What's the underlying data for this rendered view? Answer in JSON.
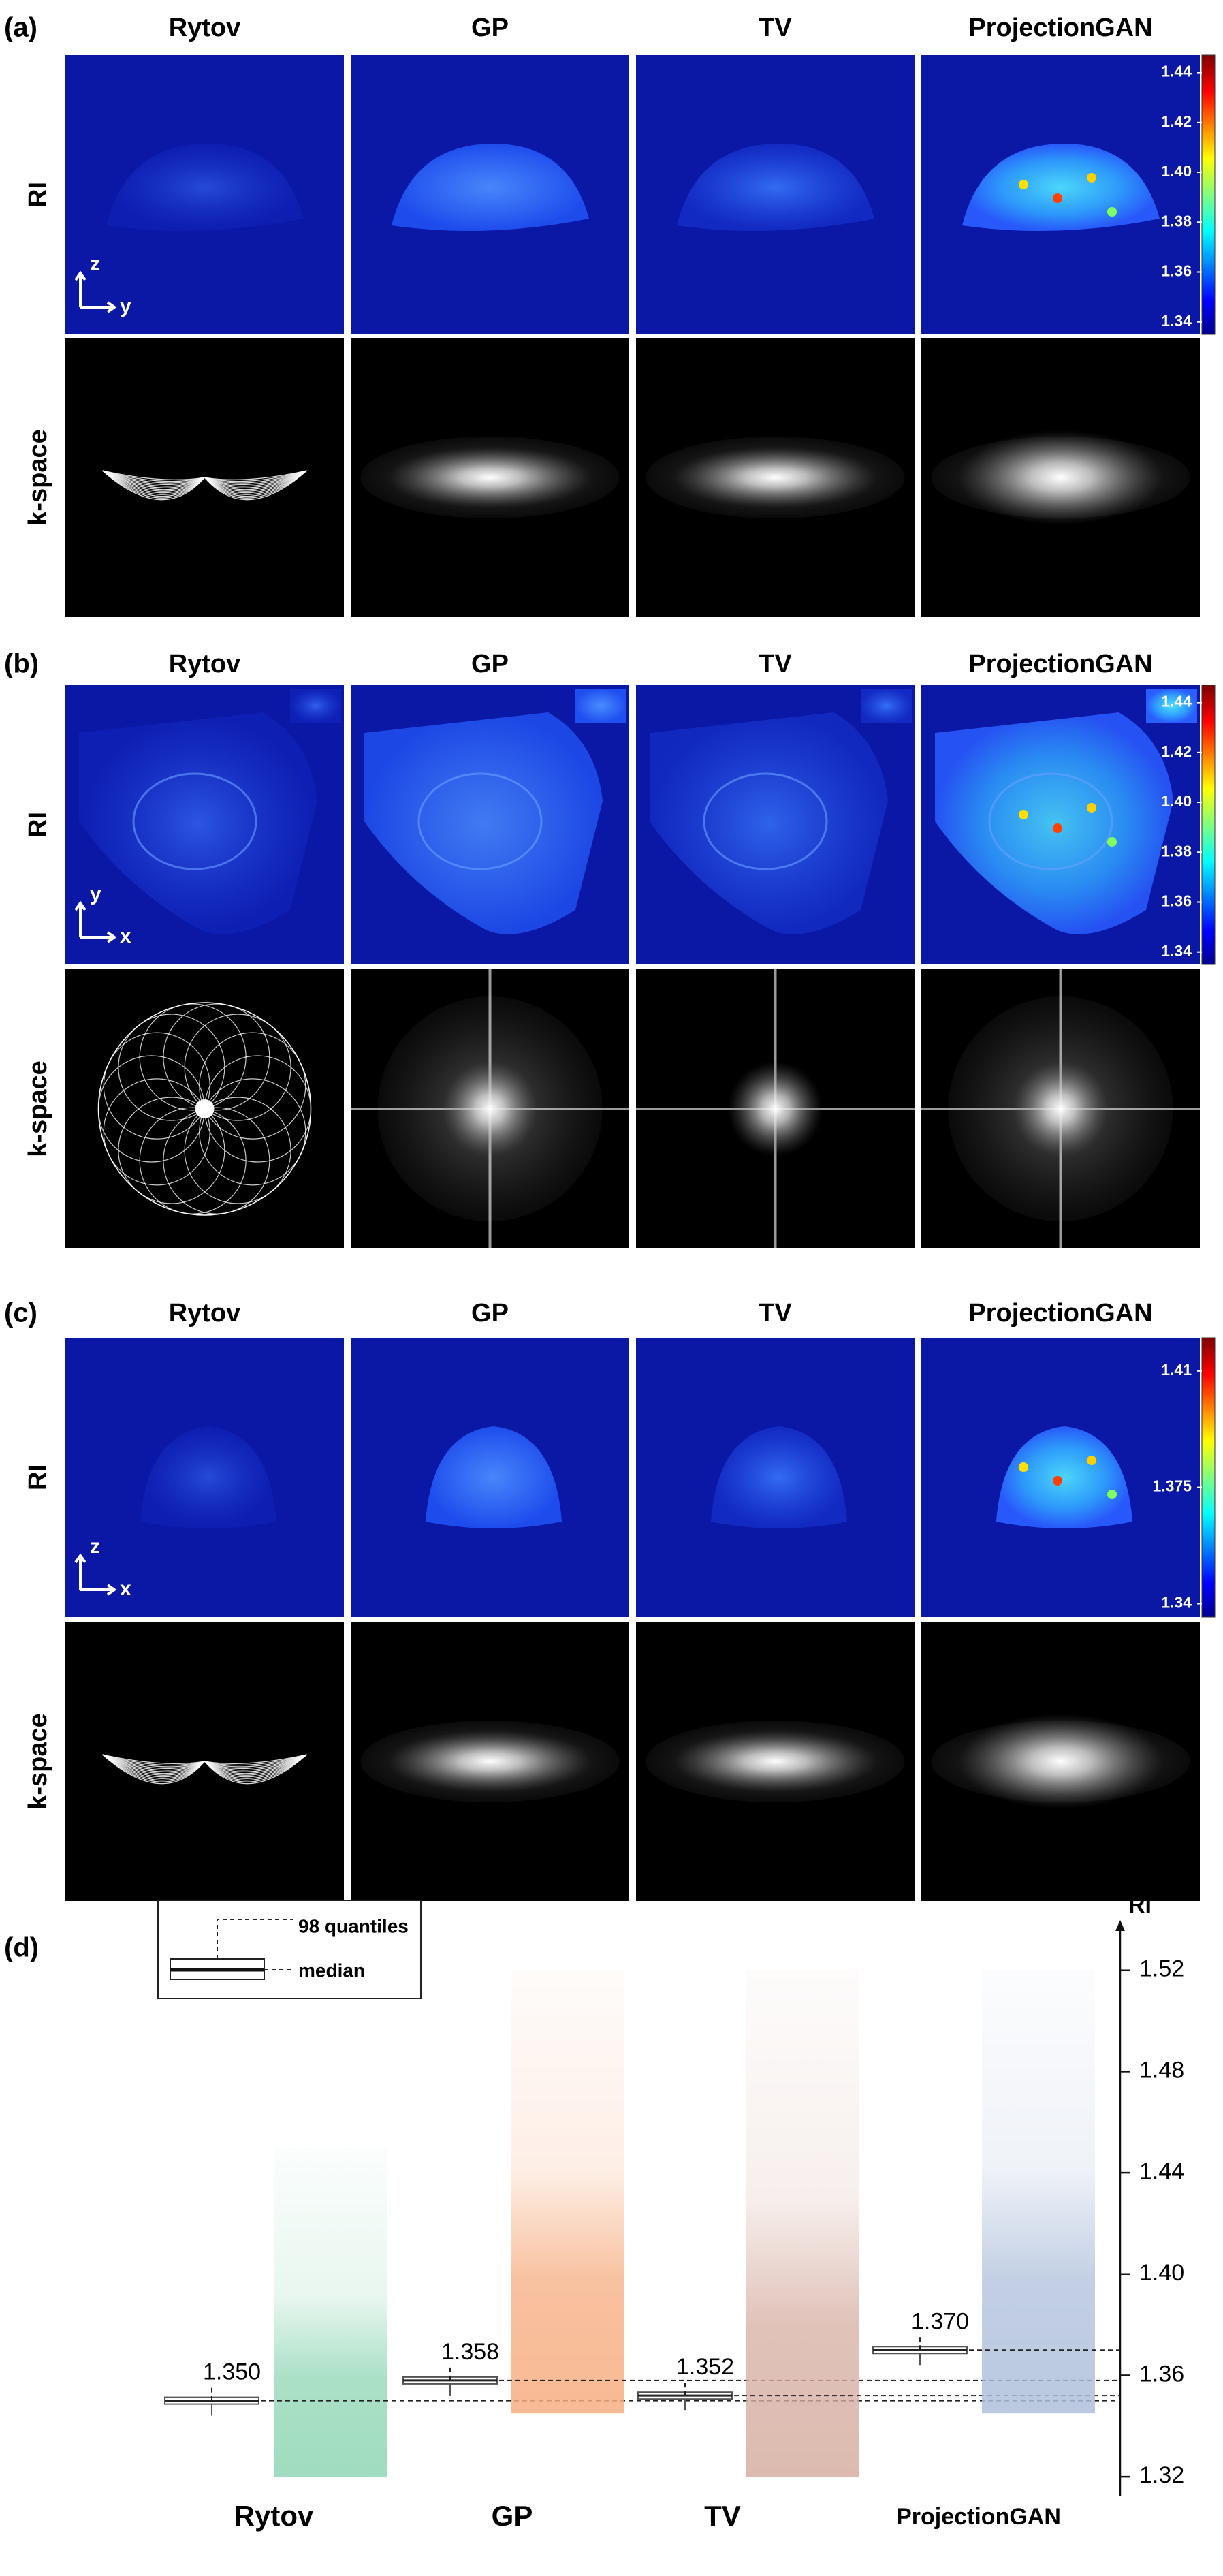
{
  "panels": [
    {
      "label": "(a)",
      "columns": [
        "Rytov",
        "GP",
        "TV",
        "ProjectionGAN"
      ],
      "rows": [
        "RI",
        "k-space"
      ],
      "axes": {
        "vertical": "z",
        "horizontal": "y"
      },
      "colorbar": {
        "lim": [
          1.335,
          1.447
        ],
        "ticks": [
          1.44,
          1.42,
          {
            "value": 1.4,
            "label": "1.40"
          },
          1.38,
          1.36,
          1.34
        ]
      }
    },
    {
      "label": "(b)",
      "columns": [
        "Rytov",
        "GP",
        "TV",
        "ProjectionGAN"
      ],
      "rows": [
        "RI",
        "k-space"
      ],
      "axes": {
        "vertical": "y",
        "horizontal": "x"
      },
      "colorbar": {
        "lim": [
          1.335,
          1.447
        ],
        "ticks": [
          1.44,
          1.42,
          {
            "value": 1.4,
            "label": "1.40"
          },
          1.38,
          1.36,
          1.34
        ]
      }
    },
    {
      "label": "(c)",
      "columns": [
        "Rytov",
        "GP",
        "TV",
        "ProjectionGAN"
      ],
      "rows": [
        "RI",
        "k-space"
      ],
      "axes": {
        "vertical": "z",
        "horizontal": "x"
      },
      "colorbar": {
        "lim": [
          1.336,
          1.42
        ],
        "ticks": [
          1.41,
          1.375,
          1.34
        ]
      }
    }
  ],
  "chart_data": {
    "type": "box",
    "label": "(d)",
    "ylabel": "RI",
    "categories": [
      "Rytov",
      "GP",
      "TV",
      "ProjectionGAN"
    ],
    "values": [
      1.35,
      1.358,
      1.352,
      1.37
    ],
    "value_labels": [
      "1.350",
      "1.358",
      "1.352",
      "1.370"
    ],
    "distribution_min": [
      1.32,
      1.345,
      1.32,
      1.345
    ],
    "distribution_max": [
      1.45,
      1.52,
      1.52,
      1.52
    ],
    "colors": [
      "#8fd6b4",
      "#f6ad80",
      "#d6aea2",
      "#aebfdb"
    ],
    "ylim": [
      1.3125,
      1.535
    ],
    "yticks": [
      1.32,
      1.36,
      {
        "value": 1.4,
        "label": "1.40"
      },
      1.44,
      1.48,
      1.52
    ],
    "legend": {
      "quantiles": "98 quantiles",
      "median": "median"
    }
  }
}
